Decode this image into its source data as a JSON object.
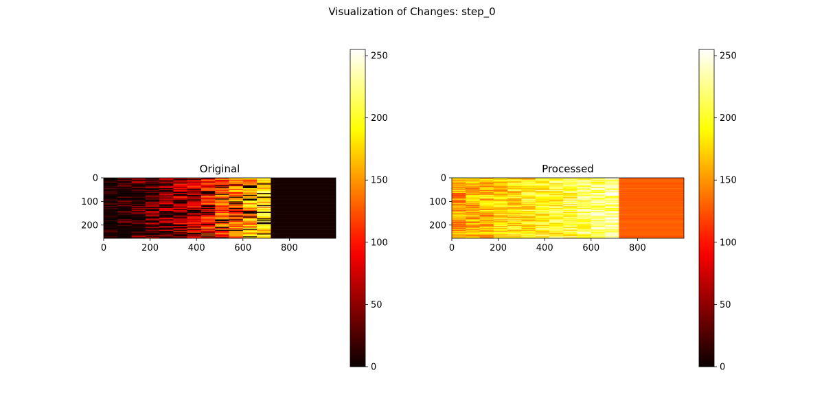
{
  "figure": {
    "suptitle": "Visualization of Changes: step_0",
    "colormap": "hot",
    "colormap_stops": [
      "#0b0000",
      "#ff0000",
      "#ffff00",
      "#ffffff"
    ]
  },
  "chart_data": [
    {
      "type": "heatmap",
      "title": "Original",
      "xlabel": "",
      "ylabel": "",
      "xlim": [
        0,
        1000
      ],
      "ylim": [
        256,
        0
      ],
      "x_ticks": [
        0,
        200,
        400,
        600,
        800
      ],
      "y_ticks": [
        0,
        100,
        200
      ],
      "rows": 256,
      "cols": 1000,
      "data_end_col": 720,
      "description_of_regions": [
        {
          "x_range": [
            0,
            720
          ],
          "value_range": [
            0,
            255
          ],
          "trend": "increasing with x"
        },
        {
          "x_range": [
            720,
            1000
          ],
          "value": 5
        }
      ],
      "colorbar": {
        "vmin": 0,
        "vmax": 255,
        "ticks": [
          0,
          50,
          100,
          150,
          200,
          250
        ]
      }
    },
    {
      "type": "heatmap",
      "title": "Processed",
      "xlabel": "",
      "ylabel": "",
      "xlim": [
        0,
        1000
      ],
      "ylim": [
        256,
        0
      ],
      "x_ticks": [
        0,
        200,
        400,
        600,
        800
      ],
      "y_ticks": [
        0,
        100,
        200
      ],
      "rows": 256,
      "cols": 1000,
      "data_end_col": 720,
      "description_of_regions": [
        {
          "x_range": [
            0,
            720
          ],
          "value_range": [
            110,
            255
          ],
          "trend": "increasing with x"
        },
        {
          "x_range": [
            720,
            1000
          ],
          "value": 128
        }
      ],
      "colorbar": {
        "vmin": 0,
        "vmax": 255,
        "ticks": [
          0,
          50,
          100,
          150,
          200,
          250
        ]
      }
    }
  ]
}
